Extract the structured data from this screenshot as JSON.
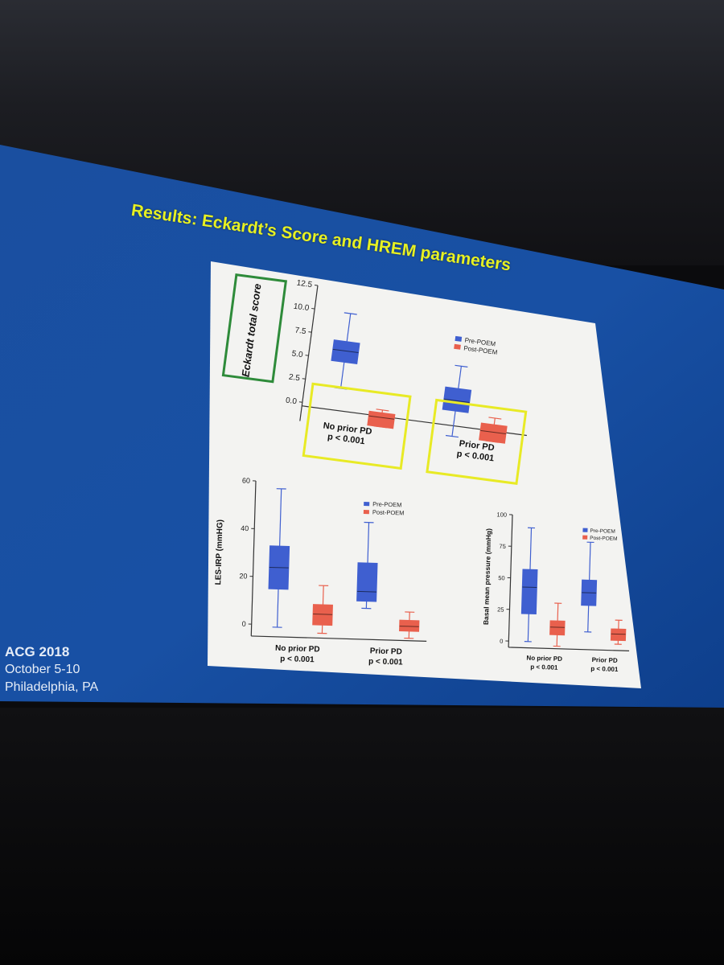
{
  "slide": {
    "title": "Results: Eckardt’s Score and HREM parameters",
    "conference": {
      "name": "ACG 2018",
      "dates": "October 5-10",
      "location": "Philadelphia, PA"
    }
  },
  "colors": {
    "pre": "#3f5fd0",
    "post": "#e9604d",
    "highlight": "#e8ea25",
    "label_box": "#2e8b3a"
  },
  "legend": {
    "pre": "Pre-POEM",
    "post": "Post-POEM"
  },
  "chart_data": [
    {
      "type": "box",
      "ylabel": "Eckardt total score",
      "yticks": [
        "12.5",
        "10.0",
        "7.5",
        "5.0",
        "2.5",
        "0.0"
      ],
      "ylim": [
        -2,
        12.5
      ],
      "groups": [
        {
          "label": "No prior PD",
          "p": "p < 0.001",
          "pre": {
            "min": 2,
            "q1": 4.8,
            "median": 6,
            "q3": 7,
            "max": 10
          },
          "post": {
            "min": -1.5,
            "q1": -1.5,
            "median": -0.5,
            "q3": 0,
            "max": 0.3
          }
        },
        {
          "label": "Prior PD",
          "p": "p < 0.001",
          "pre": {
            "min": -1.5,
            "q1": 1.2,
            "median": 2.3,
            "q3": 3.6,
            "max": 6
          },
          "post": {
            "min": -1.5,
            "q1": -1.5,
            "median": -0.5,
            "q3": 0.3,
            "max": 1
          }
        }
      ]
    },
    {
      "type": "box",
      "ylabel": "LES-IRP (mmHG)",
      "yticks": [
        "60",
        "40",
        "20",
        "0"
      ],
      "ylim": [
        -5,
        60
      ],
      "groups": [
        {
          "label": "No prior PD",
          "p": "p < 0.001",
          "pre": {
            "min": -1,
            "q1": 15,
            "median": 24,
            "q3": 33,
            "max": 57
          },
          "post": {
            "min": -3,
            "q1": 0.5,
            "median": 5,
            "q3": 9,
            "max": 17
          }
        },
        {
          "label": "Prior PD",
          "p": "p < 0.001",
          "pre": {
            "min": 8,
            "q1": 11,
            "median": 15,
            "q3": 27,
            "max": 44
          },
          "post": {
            "min": -4,
            "q1": -1,
            "median": 1,
            "q3": 3.5,
            "max": 7
          }
        }
      ]
    },
    {
      "type": "box",
      "ylabel": "Basal mean pressure (mmHg)",
      "yticks": [
        "100",
        "75",
        "50",
        "25",
        "0"
      ],
      "ylim": [
        -5,
        100
      ],
      "groups": [
        {
          "label": "No prior PD",
          "p": "p < 0.001",
          "pre": {
            "min": 0,
            "q1": 22,
            "median": 43,
            "q3": 57,
            "max": 90
          },
          "post": {
            "min": -3,
            "q1": 6,
            "median": 12,
            "q3": 17,
            "max": 31
          }
        },
        {
          "label": "Prior PD",
          "p": "p < 0.001",
          "pre": {
            "min": 9,
            "q1": 30,
            "median": 40,
            "q3": 50,
            "max": 80
          },
          "post": {
            "min": 0,
            "q1": 3,
            "median": 8,
            "q3": 12,
            "max": 19
          }
        }
      ]
    }
  ]
}
